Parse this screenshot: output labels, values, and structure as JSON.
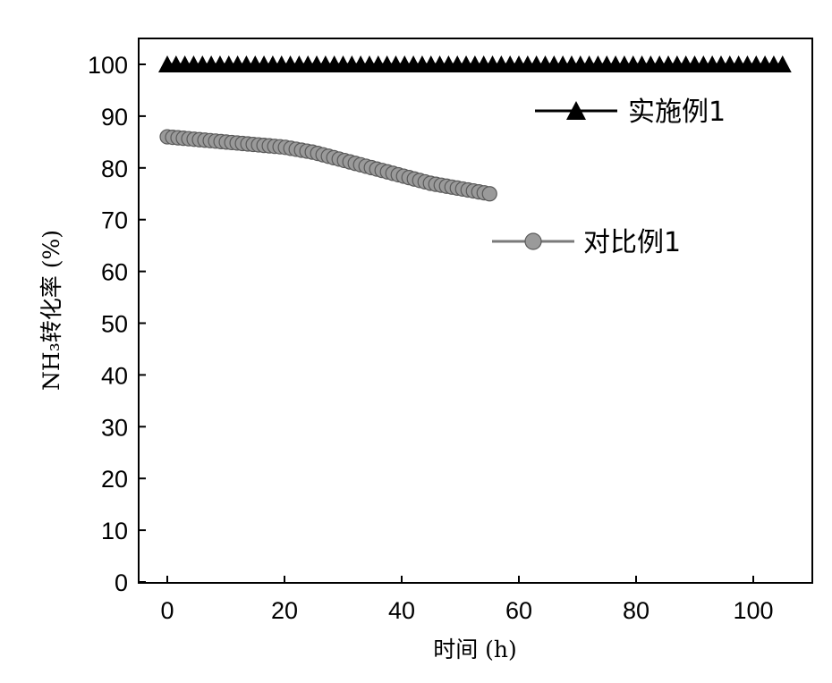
{
  "chart_data": {
    "type": "line",
    "title": "",
    "xlabel": "时间 (h)",
    "ylabel": "NH₃转化率 (%)",
    "xlim": [
      -5,
      110
    ],
    "ylim": [
      0,
      105
    ],
    "xticks": [
      0,
      20,
      40,
      60,
      80,
      100
    ],
    "yticks": [
      0,
      10,
      20,
      30,
      40,
      50,
      60,
      70,
      80,
      90,
      100
    ],
    "grid": false,
    "legend_placement": "right",
    "series": [
      {
        "name": "实施例1",
        "marker": "triangle",
        "color": "#000000",
        "x": [
          0,
          5,
          10,
          15,
          20,
          25,
          30,
          35,
          40,
          45,
          50,
          55,
          60,
          65,
          70,
          75,
          80,
          85,
          90,
          95,
          100,
          105
        ],
        "y": [
          100,
          100,
          100,
          100,
          100,
          100,
          100,
          100,
          100,
          100,
          100,
          100,
          100,
          100,
          100,
          100,
          100,
          100,
          100,
          100,
          100,
          100
        ]
      },
      {
        "name": "对比例1",
        "marker": "circle",
        "color": "#7a7a7a",
        "x": [
          0,
          5,
          10,
          15,
          20,
          25,
          30,
          35,
          40,
          45,
          50,
          55
        ],
        "y": [
          86,
          85.5,
          85,
          84.5,
          84,
          83,
          81.5,
          80,
          78.5,
          77,
          76,
          75
        ]
      }
    ]
  }
}
